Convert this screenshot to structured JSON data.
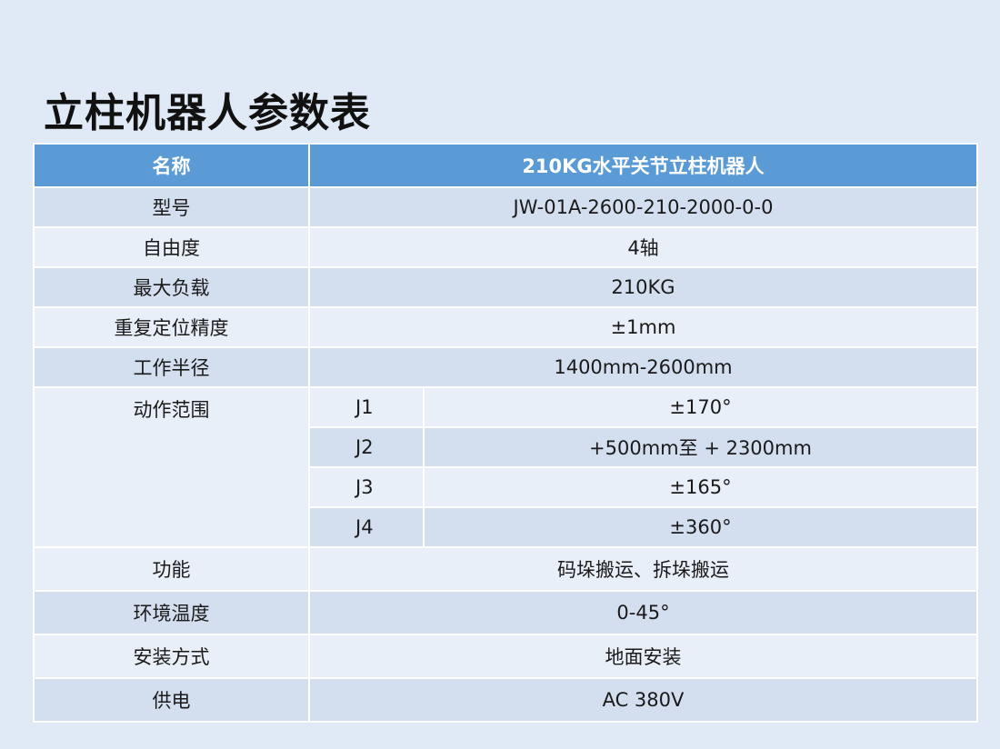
{
  "title": "立柱机器人参数表",
  "colors": {
    "header": "#5b9bd5",
    "row_dark": "#d3dfee",
    "row_light": "#e9eff8",
    "background": "#dfeaf6"
  },
  "header": {
    "name": "名称",
    "value": "210KG水平关节立柱机器人"
  },
  "rows": [
    {
      "label": "型号",
      "value": "JW-01A-2600-210-2000-0-0"
    },
    {
      "label": "自由度",
      "value": "4轴"
    },
    {
      "label": "最大负载",
      "value": "210KG"
    },
    {
      "label": "重复定位精度",
      "value": "±1mm"
    },
    {
      "label": "工作半径",
      "value": "1400mm-2600mm"
    }
  ],
  "motion": {
    "label": "动作范围",
    "axes": [
      {
        "axis": "J1",
        "value": "±170°"
      },
      {
        "axis": "J2",
        "value": "+500mm至 + 2300mm"
      },
      {
        "axis": "J3",
        "value": "±165°"
      },
      {
        "axis": "J4",
        "value": "±360°"
      }
    ]
  },
  "rows2": [
    {
      "label": "功能",
      "value": "码垛搬运、拆垛搬运"
    },
    {
      "label": "环境温度",
      "value": "0-45°"
    },
    {
      "label": "安装方式",
      "value": "地面安装"
    },
    {
      "label": "供电",
      "value": "AC 380V"
    }
  ]
}
